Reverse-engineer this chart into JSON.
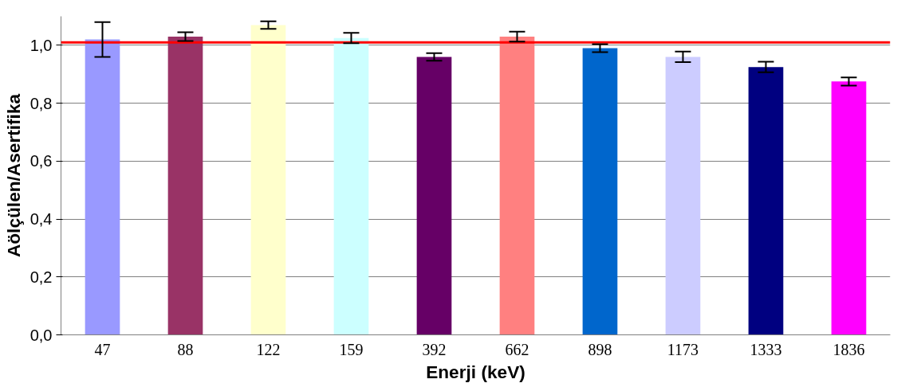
{
  "chart_data": {
    "type": "bar",
    "xlabel": "Enerji (keV)",
    "ylabel": "Aölçülen/Asertifika",
    "categories": [
      "47",
      "88",
      "122",
      "159",
      "392",
      "662",
      "898",
      "1173",
      "1333",
      "1836"
    ],
    "values": [
      1.02,
      1.03,
      1.07,
      1.025,
      0.96,
      1.03,
      0.99,
      0.96,
      0.925,
      0.875
    ],
    "errors": [
      0.06,
      0.015,
      0.013,
      0.018,
      0.013,
      0.017,
      0.014,
      0.018,
      0.018,
      0.014
    ],
    "colors": [
      "#9999ff",
      "#993366",
      "#ffffcc",
      "#ccffff",
      "#660066",
      "#ff8080",
      "#0066cc",
      "#ccccff",
      "#000080",
      "#ff00ff"
    ],
    "ylim": [
      0,
      1.1
    ],
    "yticks": [
      {
        "value": 0,
        "label": "0,0"
      },
      {
        "value": 0.2,
        "label": "0,2"
      },
      {
        "value": 0.4,
        "label": "0,4"
      },
      {
        "value": 0.6,
        "label": "0,6"
      },
      {
        "value": 0.8,
        "label": "0,8"
      },
      {
        "value": 1.0,
        "label": "1,0"
      }
    ],
    "ref_lines": [
      {
        "axis": "y",
        "value": 1.01,
        "label": null,
        "color": "#ff0000"
      }
    ],
    "grid": "y"
  }
}
